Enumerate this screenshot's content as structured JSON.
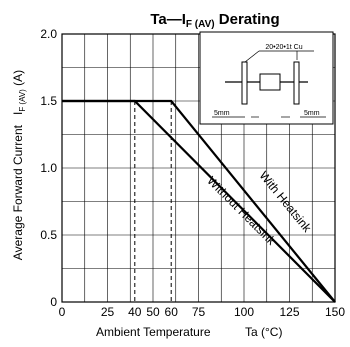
{
  "chart_data": {
    "type": "line",
    "title": "Ta—I",
    "title_sub": "F (AV)",
    "title_suffix": " Derating",
    "xlabel_main": "Ambient Temperature",
    "xlabel_var": "Ta (°C)",
    "ylabel_main": "Average Forward Current",
    "ylabel_var": "I",
    "ylabel_sub": "F (AV)",
    "ylabel_unit": " (A)",
    "xlim": [
      0,
      150
    ],
    "ylim": [
      0,
      2.0
    ],
    "x_ticks": [
      {
        "value": 0,
        "label": "0"
      },
      {
        "value": 25,
        "label": "25"
      },
      {
        "value": 40,
        "label": "40"
      },
      {
        "value": 50,
        "label": "50"
      },
      {
        "value": 60,
        "label": "60"
      },
      {
        "value": 75,
        "label": "75"
      },
      {
        "value": 100,
        "label": "100"
      },
      {
        "value": 125,
        "label": "125"
      },
      {
        "value": 150,
        "label": "150"
      }
    ],
    "y_ticks": [
      {
        "value": 0,
        "label": "0"
      },
      {
        "value": 0.5,
        "label": "0.5"
      },
      {
        "value": 1.0,
        "label": "1.0"
      },
      {
        "value": 1.5,
        "label": "1.5"
      },
      {
        "value": 2.0,
        "label": "2.0"
      }
    ],
    "grid": true,
    "x_grid": [
      0,
      12.5,
      25,
      37.5,
      50,
      62.5,
      75,
      87.5,
      100,
      112.5,
      125,
      137.5,
      150
    ],
    "y_grid": [
      0,
      0.25,
      0.5,
      0.75,
      1.0,
      1.25,
      1.5,
      1.75,
      2.0
    ],
    "series": [
      {
        "name": "With Heatsink",
        "x": [
          0,
          60,
          150
        ],
        "y": [
          1.5,
          1.5,
          0
        ],
        "label_at": [
          121,
          0.73
        ]
      },
      {
        "name": "Without Heatsink",
        "x": [
          0,
          40,
          150
        ],
        "y": [
          1.5,
          1.5,
          0
        ],
        "label_at": [
          97,
          0.66
        ]
      }
    ],
    "guides": [
      {
        "x": 40,
        "y": 1.5
      },
      {
        "x": 60,
        "y": 1.5
      }
    ],
    "inset": {
      "plate_label": "20•20•1t Cu",
      "lead_left_label": "5mm",
      "lead_right_label": "5mm"
    }
  }
}
